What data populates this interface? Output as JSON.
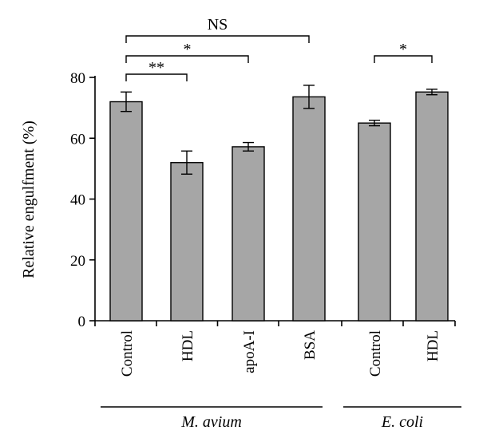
{
  "chart_data": {
    "type": "bar",
    "title": "",
    "xlabel": "",
    "ylabel": "Relative engulfment (%)",
    "ylim": [
      0,
      80
    ],
    "yticks": [
      0,
      20,
      40,
      60,
      80
    ],
    "grid": false,
    "categories": [
      "Control",
      "HDL",
      "apoA-I",
      "BSA",
      "Control",
      "HDL"
    ],
    "values": [
      72,
      52,
      57.2,
      73.6,
      65,
      75.2
    ],
    "errors": [
      3.2,
      3.8,
      1.4,
      3.8,
      0.9,
      0.9
    ],
    "bar_color": "#a6a6a6",
    "groups": [
      {
        "label": "M. avium",
        "categories": [
          0,
          1,
          2,
          3
        ]
      },
      {
        "label": "E. coli",
        "categories": [
          4,
          5
        ]
      }
    ],
    "significance": [
      {
        "from": 0,
        "to": 3,
        "label": "NS"
      },
      {
        "from": 0,
        "to": 2,
        "label": "*"
      },
      {
        "from": 0,
        "to": 1,
        "label": "**"
      },
      {
        "from": 4,
        "to": 5,
        "label": "*"
      }
    ]
  }
}
